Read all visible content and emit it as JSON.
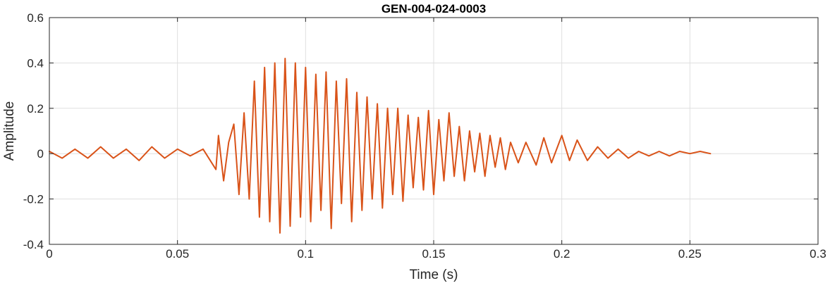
{
  "chart_data": {
    "type": "line",
    "title": "GEN-004-024-0003",
    "xlabel": "Time (s)",
    "ylabel": "Amplitude",
    "xlim": [
      0,
      0.3
    ],
    "ylim": [
      -0.4,
      0.6
    ],
    "xticks": [
      0,
      0.05,
      0.1,
      0.15,
      0.2,
      0.25,
      0.3
    ],
    "xtick_labels": [
      "0",
      "0.05",
      "0.1",
      "0.15",
      "0.2",
      "0.25",
      "0.3"
    ],
    "yticks": [
      -0.4,
      -0.2,
      0,
      0.2,
      0.4,
      0.6
    ],
    "ytick_labels": [
      "-0.4",
      "-0.2",
      "0",
      "0.2",
      "0.4",
      "0.6"
    ],
    "grid": true,
    "legend": "none",
    "colors": {
      "series": "#d95319",
      "axes": "#262626",
      "grid": "#dfdfdf"
    },
    "series": [
      {
        "x": [
          0,
          0.005,
          0.01,
          0.015,
          0.02,
          0.025,
          0.03,
          0.035,
          0.04,
          0.045,
          0.05,
          0.055,
          0.06,
          0.065,
          0.066,
          0.068,
          0.07,
          0.072,
          0.074,
          0.076,
          0.078,
          0.08,
          0.082,
          0.084,
          0.086,
          0.088,
          0.09,
          0.092,
          0.094,
          0.096,
          0.098,
          0.1,
          0.102,
          0.104,
          0.106,
          0.108,
          0.11,
          0.112,
          0.114,
          0.116,
          0.118,
          0.12,
          0.122,
          0.124,
          0.126,
          0.128,
          0.13,
          0.132,
          0.134,
          0.136,
          0.138,
          0.14,
          0.142,
          0.144,
          0.146,
          0.148,
          0.15,
          0.152,
          0.154,
          0.156,
          0.158,
          0.16,
          0.162,
          0.164,
          0.166,
          0.168,
          0.17,
          0.172,
          0.174,
          0.176,
          0.178,
          0.18,
          0.183,
          0.186,
          0.19,
          0.193,
          0.196,
          0.2,
          0.203,
          0.206,
          0.21,
          0.214,
          0.218,
          0.222,
          0.226,
          0.23,
          0.234,
          0.238,
          0.242,
          0.246,
          0.25,
          0.254,
          0.258
        ],
        "y": [
          0.01,
          -0.02,
          0.02,
          -0.02,
          0.03,
          -0.02,
          0.02,
          -0.03,
          0.03,
          -0.02,
          0.02,
          -0.01,
          0.02,
          -0.07,
          0.08,
          -0.12,
          0.05,
          0.13,
          -0.18,
          0.18,
          -0.2,
          0.32,
          -0.28,
          0.38,
          -0.3,
          0.4,
          -0.35,
          0.42,
          -0.32,
          0.4,
          -0.28,
          0.38,
          -0.3,
          0.35,
          -0.25,
          0.36,
          -0.33,
          0.32,
          -0.22,
          0.33,
          -0.3,
          0.27,
          -0.25,
          0.25,
          -0.2,
          0.22,
          -0.24,
          0.2,
          -0.18,
          0.2,
          -0.21,
          0.17,
          -0.15,
          0.16,
          -0.16,
          0.19,
          -0.18,
          0.15,
          -0.12,
          0.18,
          -0.1,
          0.12,
          -0.12,
          0.1,
          -0.08,
          0.09,
          -0.1,
          0.08,
          -0.06,
          0.07,
          -0.07,
          0.05,
          -0.04,
          0.05,
          -0.05,
          0.07,
          -0.04,
          0.08,
          -0.03,
          0.06,
          -0.03,
          0.03,
          -0.02,
          0.02,
          -0.02,
          0.01,
          -0.01,
          0.01,
          -0.01,
          0.01,
          0.0,
          0.01,
          0.0
        ]
      }
    ]
  }
}
